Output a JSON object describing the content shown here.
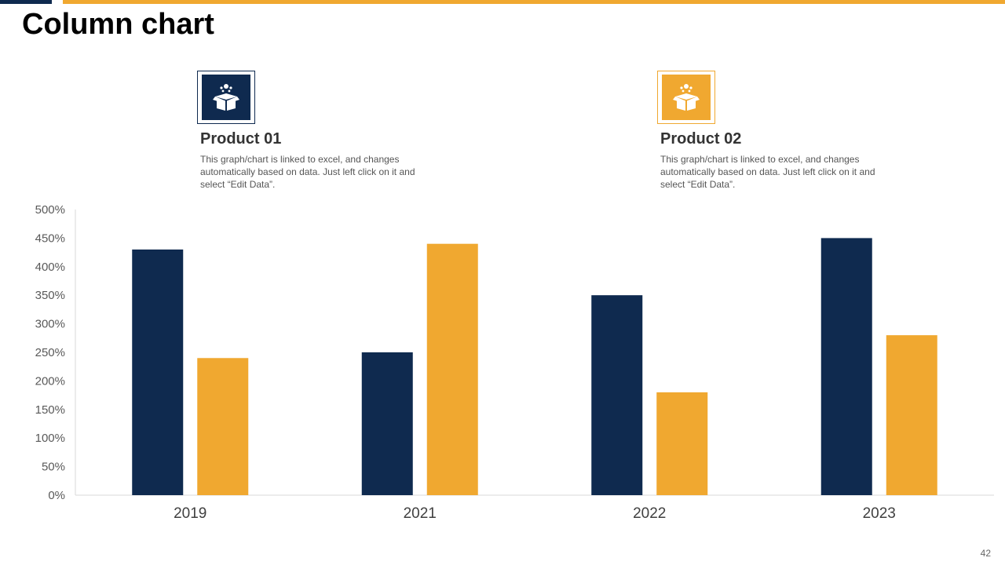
{
  "slide": {
    "title": "Column chart",
    "page_number": "42"
  },
  "products": [
    {
      "title": "Product 01",
      "description": "This graph/chart is linked to excel, and changes automatically based on data. Just left click on it and select “Edit Data”.",
      "color": "#0f2a4f",
      "icon": "gift-box-icon"
    },
    {
      "title": "Product 02",
      "description": "This graph/chart is linked to excel, and changes automatically based on data. Just left click on it and select “Edit Data”.",
      "color": "#f0a830",
      "icon": "gift-box-icon"
    }
  ],
  "chart_data": {
    "type": "bar",
    "title": "",
    "xlabel": "",
    "ylabel": "",
    "categories": [
      "2019",
      "2021",
      "2022",
      "2023"
    ],
    "series": [
      {
        "name": "Product 01",
        "color": "#0f2a4f",
        "values": [
          430,
          250,
          350,
          450
        ]
      },
      {
        "name": "Product 02",
        "color": "#f0a830",
        "values": [
          240,
          440,
          180,
          280
        ]
      }
    ],
    "ylim": [
      0,
      500
    ],
    "yticks": [
      0,
      50,
      100,
      150,
      200,
      250,
      300,
      350,
      400,
      450,
      500
    ],
    "ytick_labels": [
      "0%",
      "50%",
      "100%",
      "150%",
      "200%",
      "250%",
      "300%",
      "350%",
      "400%",
      "450%",
      "500%"
    ],
    "grid": false,
    "legend": "none"
  }
}
